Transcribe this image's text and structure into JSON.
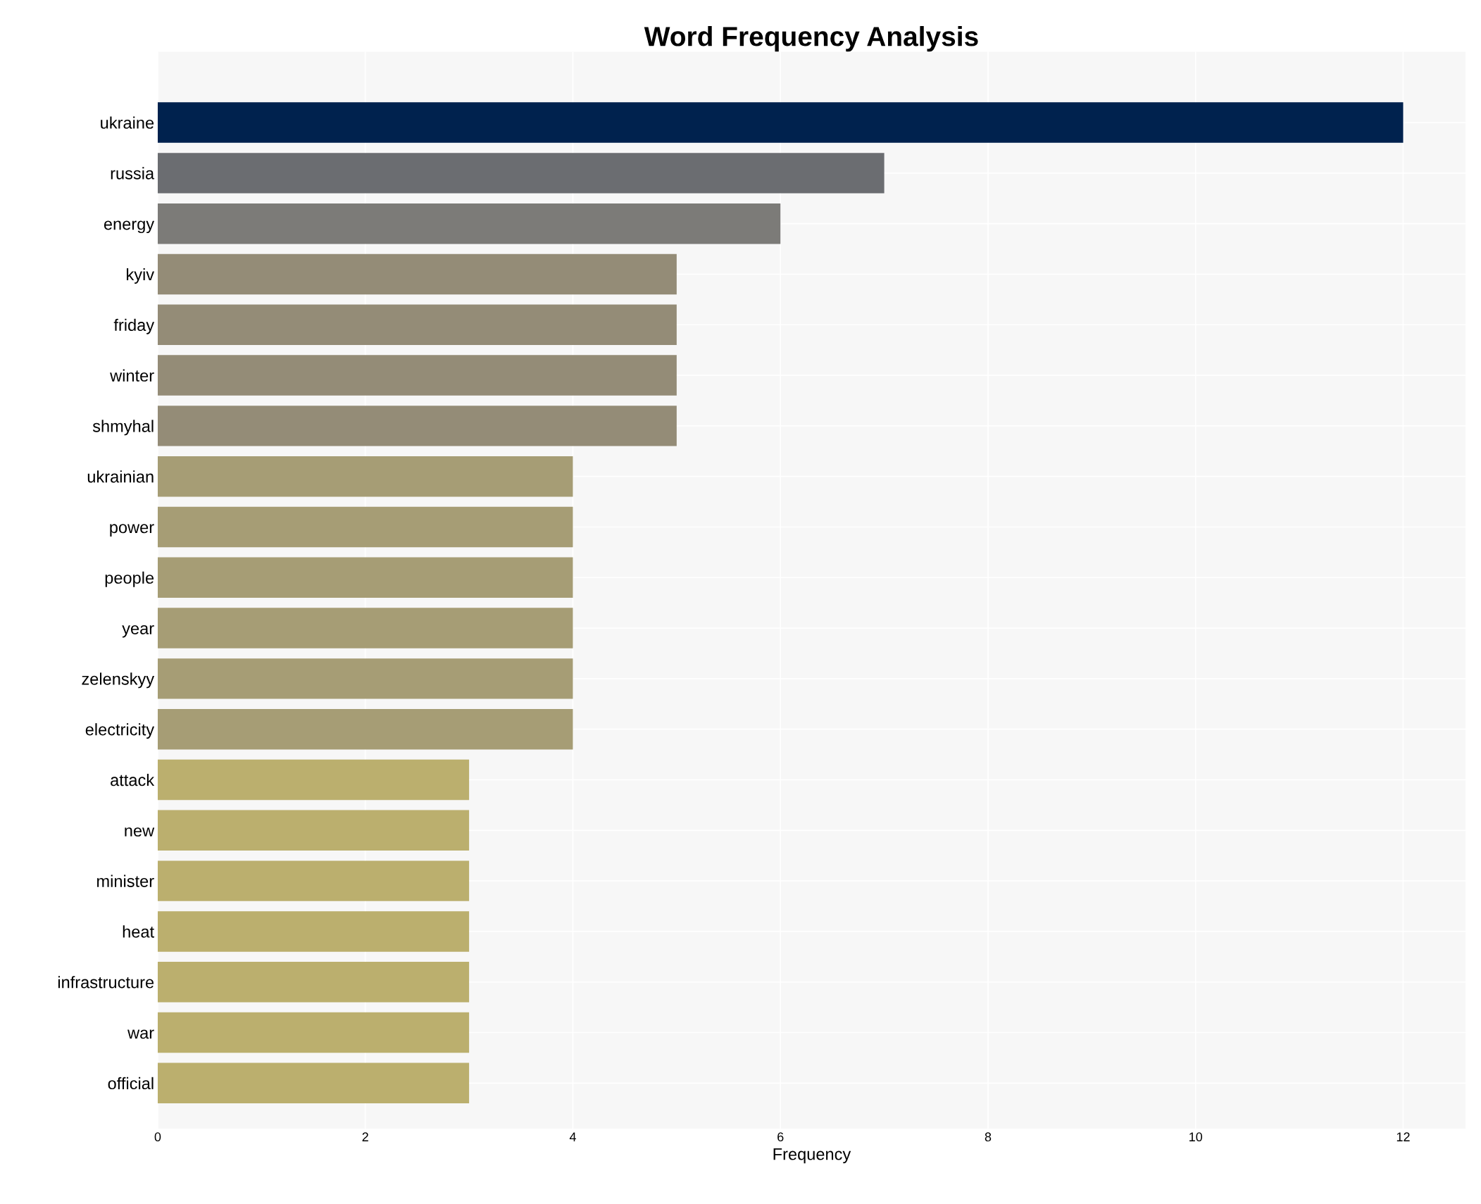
{
  "chart_data": {
    "type": "bar",
    "orientation": "horizontal",
    "title": "Word Frequency Analysis",
    "xlabel": "Frequency",
    "categories": [
      "ukraine",
      "russia",
      "energy",
      "kyiv",
      "friday",
      "winter",
      "shmyhal",
      "ukrainian",
      "power",
      "people",
      "year",
      "zelenskyy",
      "electricity",
      "attack",
      "new",
      "minister",
      "heat",
      "infrastructure",
      "war",
      "official"
    ],
    "values": [
      12,
      7,
      6,
      5,
      5,
      5,
      5,
      4,
      4,
      4,
      4,
      4,
      4,
      3,
      3,
      3,
      3,
      3,
      3,
      3
    ],
    "colors": [
      "#00224e",
      "#6b6d71",
      "#7c7b78",
      "#948c77",
      "#948c77",
      "#948c77",
      "#948c77",
      "#a69d75",
      "#a69d75",
      "#a69d75",
      "#a69d75",
      "#a69d75",
      "#a69d75",
      "#bbaf6e",
      "#bbaf6e",
      "#bbaf6e",
      "#bbaf6e",
      "#bbaf6e",
      "#bbaf6e",
      "#bbaf6e"
    ],
    "xlim": [
      0,
      12.6
    ],
    "xticks": [
      0,
      2,
      4,
      6,
      8,
      10,
      12
    ],
    "grid": true,
    "legend": false
  }
}
